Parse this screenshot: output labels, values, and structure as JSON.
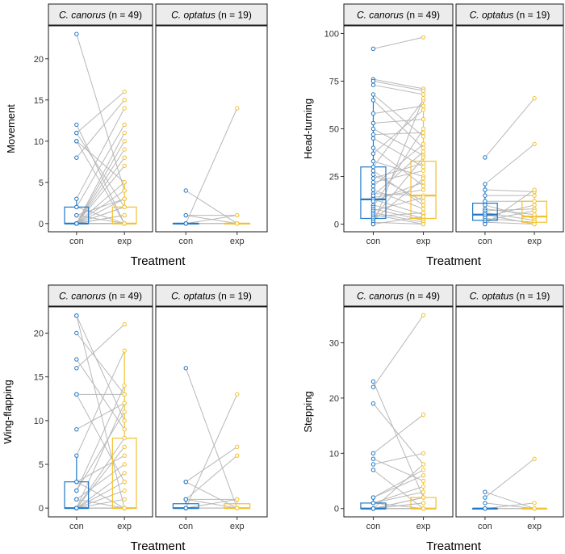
{
  "colors": {
    "con": "#1f78c8",
    "exp": "#f2c12e",
    "line": "#b8b8b8",
    "strip_bg": "#ececec",
    "frame": "#1a1a1a"
  },
  "chart_data": [
    {
      "type": "box",
      "id": "movement",
      "ylabel": "Movement",
      "xlabel": "Treatment",
      "ylim": [
        -1,
        24
      ],
      "yticks": [
        0,
        5,
        10,
        15,
        20
      ],
      "categories": [
        "con",
        "exp"
      ],
      "panels": [
        {
          "strip": {
            "species": "C. canorus",
            "n_part": " (n = 49)"
          },
          "boxes": {
            "con": {
              "q1": 0,
              "median": 0,
              "q3": 2,
              "whisker_low": 0,
              "whisker_high": 3
            },
            "exp": {
              "q1": 0,
              "median": 0,
              "q3": 2,
              "whisker_low": 0,
              "whisker_high": 5
            }
          },
          "pairs": [
            [
              23,
              4
            ],
            [
              12,
              0
            ],
            [
              11,
              16
            ],
            [
              11,
              2
            ],
            [
              10,
              0
            ],
            [
              10,
              5
            ],
            [
              8,
              15
            ],
            [
              3,
              14
            ],
            [
              2,
              0
            ],
            [
              2,
              12
            ],
            [
              1,
              3
            ],
            [
              1,
              0
            ],
            [
              0,
              11
            ],
            [
              0,
              10
            ],
            [
              0,
              9
            ],
            [
              0,
              8
            ],
            [
              0,
              7
            ],
            [
              0,
              5
            ],
            [
              0,
              4
            ],
            [
              0,
              3
            ],
            [
              0,
              2
            ],
            [
              0,
              1
            ],
            [
              0,
              0
            ],
            [
              0,
              0
            ],
            [
              0,
              0
            ],
            [
              0,
              0
            ],
            [
              0,
              0
            ],
            [
              0,
              1
            ],
            [
              0,
              0
            ],
            [
              0,
              2
            ]
          ]
        },
        {
          "strip": {
            "species": "C. optatus",
            "n_part": " (n = 19)"
          },
          "boxes": {
            "con": {
              "q1": 0,
              "median": 0,
              "q3": 0,
              "whisker_low": 0,
              "whisker_high": 0
            },
            "exp": {
              "q1": 0,
              "median": 0,
              "q3": 0,
              "whisker_low": 0,
              "whisker_high": 0
            }
          },
          "pairs": [
            [
              4,
              0
            ],
            [
              1,
              0
            ],
            [
              0,
              14
            ],
            [
              0,
              1
            ],
            [
              0,
              0
            ],
            [
              0,
              0
            ],
            [
              1,
              1
            ]
          ]
        }
      ]
    },
    {
      "type": "box",
      "id": "head-turning",
      "ylabel": "Head-turning",
      "xlabel": "Treatment",
      "ylim": [
        -4,
        104
      ],
      "yticks": [
        0,
        25,
        50,
        75,
        100
      ],
      "categories": [
        "con",
        "exp"
      ],
      "panels": [
        {
          "strip": {
            "species": "C. canorus",
            "n_part": " (n = 49)"
          },
          "boxes": {
            "con": {
              "q1": 3,
              "median": 13,
              "q3": 30,
              "whisker_low": 0,
              "whisker_high": 68
            },
            "exp": {
              "q1": 3,
              "median": 15,
              "q3": 33,
              "whisker_low": 0,
              "whisker_high": 72
            }
          },
          "pairs": [
            [
              92,
              98
            ],
            [
              76,
              71
            ],
            [
              75,
              70
            ],
            [
              73,
              68
            ],
            [
              68,
              46
            ],
            [
              65,
              40
            ],
            [
              58,
              62
            ],
            [
              53,
              55
            ],
            [
              50,
              36
            ],
            [
              47,
              48
            ],
            [
              45,
              30
            ],
            [
              40,
              20
            ],
            [
              37,
              60
            ],
            [
              33,
              25
            ],
            [
              30,
              65
            ],
            [
              28,
              10
            ],
            [
              26,
              12
            ],
            [
              24,
              32
            ],
            [
              22,
              28
            ],
            [
              20,
              42
            ],
            [
              18,
              8
            ],
            [
              16,
              15
            ],
            [
              14,
              18
            ],
            [
              13,
              5
            ],
            [
              12,
              22
            ],
            [
              10,
              3
            ],
            [
              9,
              50
            ],
            [
              8,
              2
            ],
            [
              7,
              14
            ],
            [
              6,
              1
            ],
            [
              5,
              0
            ],
            [
              4,
              6
            ],
            [
              3,
              35
            ],
            [
              2,
              24
            ],
            [
              1,
              0
            ],
            [
              0,
              4
            ],
            [
              0,
              66
            ],
            [
              15,
              38
            ]
          ]
        },
        {
          "strip": {
            "species": "C. optatus",
            "n_part": " (n = 19)"
          },
          "boxes": {
            "con": {
              "q1": 2,
              "median": 5,
              "q3": 11,
              "whisker_low": 0,
              "whisker_high": 21
            },
            "exp": {
              "q1": 1,
              "median": 4,
              "q3": 12,
              "whisker_low": 0,
              "whisker_high": 18
            }
          },
          "pairs": [
            [
              35,
              66
            ],
            [
              21,
              42
            ],
            [
              18,
              17
            ],
            [
              15,
              15
            ],
            [
              12,
              12
            ],
            [
              10,
              3
            ],
            [
              8,
              5
            ],
            [
              7,
              8
            ],
            [
              6,
              2
            ],
            [
              5,
              0
            ],
            [
              4,
              10
            ],
            [
              3,
              1
            ],
            [
              2,
              7
            ],
            [
              1,
              0
            ],
            [
              0,
              18
            ]
          ]
        }
      ]
    },
    {
      "type": "box",
      "id": "wing-flapping",
      "ylabel": "Wing-flapping",
      "xlabel": "Treatment",
      "ylim": [
        -1,
        23
      ],
      "yticks": [
        0,
        5,
        10,
        15,
        20
      ],
      "categories": [
        "con",
        "exp"
      ],
      "panels": [
        {
          "strip": {
            "species": "C. canorus",
            "n_part": " (n = 49)"
          },
          "boxes": {
            "con": {
              "q1": 0,
              "median": 0,
              "q3": 3,
              "whisker_low": 0,
              "whisker_high": 6
            },
            "exp": {
              "q1": 0,
              "median": 0,
              "q3": 8,
              "whisker_low": 0,
              "whisker_high": 18
            }
          },
          "pairs": [
            [
              22,
              10
            ],
            [
              22,
              0
            ],
            [
              20,
              13
            ],
            [
              17,
              9
            ],
            [
              16,
              21
            ],
            [
              13,
              13
            ],
            [
              13,
              3
            ],
            [
              9,
              12
            ],
            [
              6,
              18
            ],
            [
              3,
              6
            ],
            [
              3,
              0
            ],
            [
              2,
              14
            ],
            [
              2,
              11
            ],
            [
              1,
              5
            ],
            [
              1,
              0
            ],
            [
              0,
              8
            ],
            [
              0,
              7
            ],
            [
              0,
              4
            ],
            [
              0,
              3
            ],
            [
              0,
              2
            ],
            [
              0,
              1
            ],
            [
              0,
              0
            ],
            [
              0,
              0
            ],
            [
              0,
              0
            ],
            [
              0,
              12
            ],
            [
              0,
              0
            ]
          ]
        },
        {
          "strip": {
            "species": "C. optatus",
            "n_part": " (n = 19)"
          },
          "boxes": {
            "con": {
              "q1": 0,
              "median": 0,
              "q3": 0.5,
              "whisker_low": 0,
              "whisker_high": 1
            },
            "exp": {
              "q1": 0,
              "median": 0,
              "q3": 0.5,
              "whisker_low": 0,
              "whisker_high": 1
            }
          },
          "pairs": [
            [
              16,
              0
            ],
            [
              3,
              7
            ],
            [
              3,
              0
            ],
            [
              1,
              6
            ],
            [
              1,
              0
            ],
            [
              0,
              13
            ],
            [
              0,
              1
            ],
            [
              0,
              0
            ],
            [
              0,
              0
            ],
            [
              1,
              1
            ]
          ]
        }
      ]
    },
    {
      "type": "box",
      "id": "stepping",
      "ylabel": "Stepping",
      "xlabel": "Treatment",
      "ylim": [
        -1.5,
        36.5
      ],
      "yticks": [
        0,
        10,
        20,
        30
      ],
      "categories": [
        "con",
        "exp"
      ],
      "panels": [
        {
          "strip": {
            "species": "C. canorus",
            "n_part": " (n = 49)"
          },
          "boxes": {
            "con": {
              "q1": 0,
              "median": 0,
              "q3": 1,
              "whisker_low": 0,
              "whisker_high": 2
            },
            "exp": {
              "q1": 0,
              "median": 0,
              "q3": 2,
              "whisker_low": 0,
              "whisker_high": 5
            }
          },
          "pairs": [
            [
              23,
              2
            ],
            [
              22,
              35
            ],
            [
              19,
              8
            ],
            [
              10,
              17
            ],
            [
              9,
              5
            ],
            [
              8,
              10
            ],
            [
              7,
              0
            ],
            [
              2,
              6
            ],
            [
              2,
              7
            ],
            [
              1,
              4
            ],
            [
              1,
              3
            ],
            [
              1,
              0
            ],
            [
              0,
              2
            ],
            [
              0,
              1
            ],
            [
              0,
              0
            ],
            [
              0,
              0
            ],
            [
              0,
              8
            ],
            [
              0,
              0
            ],
            [
              0,
              1
            ],
            [
              0,
              2
            ]
          ]
        },
        {
          "strip": {
            "species": "C. optatus",
            "n_part": " (n = 19)"
          },
          "boxes": {
            "con": {
              "q1": 0,
              "median": 0,
              "q3": 0,
              "whisker_low": 0,
              "whisker_high": 0
            },
            "exp": {
              "q1": 0,
              "median": 0,
              "q3": 0,
              "whisker_low": 0,
              "whisker_high": 0
            }
          },
          "pairs": [
            [
              3,
              0
            ],
            [
              2,
              9
            ],
            [
              1,
              0
            ],
            [
              0,
              1
            ],
            [
              0,
              0
            ],
            [
              0,
              0
            ]
          ]
        }
      ]
    }
  ]
}
